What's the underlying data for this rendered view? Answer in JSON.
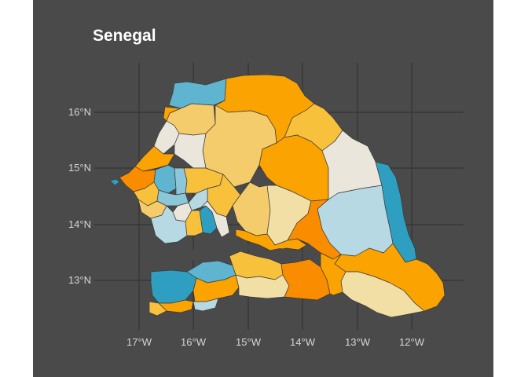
{
  "title": "Senegal",
  "map": {
    "background_color": "#4a4a4a",
    "palette": [
      "#fba300",
      "#f8c13c",
      "#f5cc6b",
      "#f1dfa6",
      "#eae6dc",
      "#b7d9e3",
      "#8cc6d9",
      "#5fb4d0",
      "#2e9fc0",
      "#fa8c00"
    ],
    "y_ticks": [
      "16°N",
      "15°N",
      "14°N",
      "13°N"
    ],
    "x_ticks": [
      "17°W",
      "16°W",
      "15°W",
      "14°W",
      "13°W",
      "12°W"
    ]
  }
}
